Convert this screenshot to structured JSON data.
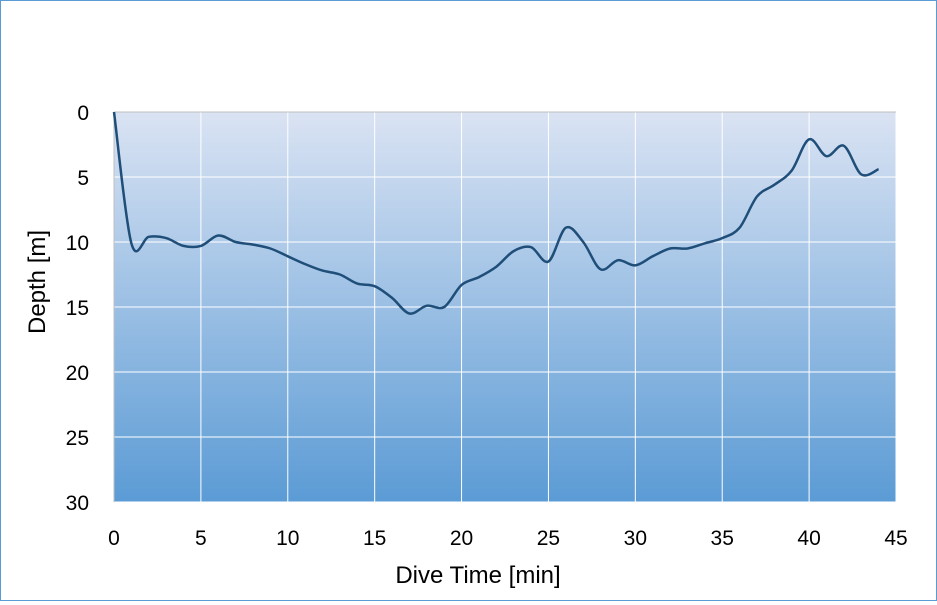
{
  "chart_data": {
    "type": "line",
    "title": "",
    "xlabel": "Dive Time [min]",
    "ylabel": "Depth [m]",
    "xlim": [
      0,
      45
    ],
    "ylim": [
      0,
      30
    ],
    "y_inverted": true,
    "xticks": [
      0,
      5,
      10,
      15,
      20,
      25,
      30,
      35,
      40,
      45
    ],
    "yticks": [
      0,
      5,
      10,
      15,
      20,
      25,
      30
    ],
    "grid": true,
    "legend": null,
    "series": [
      {
        "name": "Depth",
        "color": "#1f4e79",
        "smooth": true,
        "x": [
          0,
          1,
          2,
          3,
          4,
          5,
          6,
          7,
          8,
          9,
          10,
          11,
          12,
          13,
          14,
          15,
          16,
          17,
          18,
          19,
          20,
          21,
          22,
          23,
          24,
          25,
          26,
          27,
          28,
          29,
          30,
          31,
          32,
          33,
          34,
          35,
          36,
          37,
          38,
          39,
          40,
          41,
          42,
          43,
          44
        ],
        "y": [
          0,
          10.1,
          9.6,
          9.7,
          10.3,
          10.3,
          9.5,
          10.0,
          10.2,
          10.5,
          11.1,
          11.7,
          12.2,
          12.5,
          13.2,
          13.4,
          14.3,
          15.5,
          14.9,
          15.0,
          13.3,
          12.7,
          11.9,
          10.7,
          10.4,
          11.5,
          8.9,
          10.0,
          12.1,
          11.4,
          11.8,
          11.1,
          10.5,
          10.5,
          10.1,
          9.7,
          8.9,
          6.5,
          5.6,
          4.5,
          2.1,
          3.4,
          2.6,
          4.8,
          4.4
        ]
      }
    ]
  },
  "colors": {
    "frame_border": "#5b9bd5",
    "plot_top": "#dae3f3",
    "plot_bottom": "#5b9bd5",
    "gridline": "#ffffff",
    "line": "#1f4e79"
  }
}
